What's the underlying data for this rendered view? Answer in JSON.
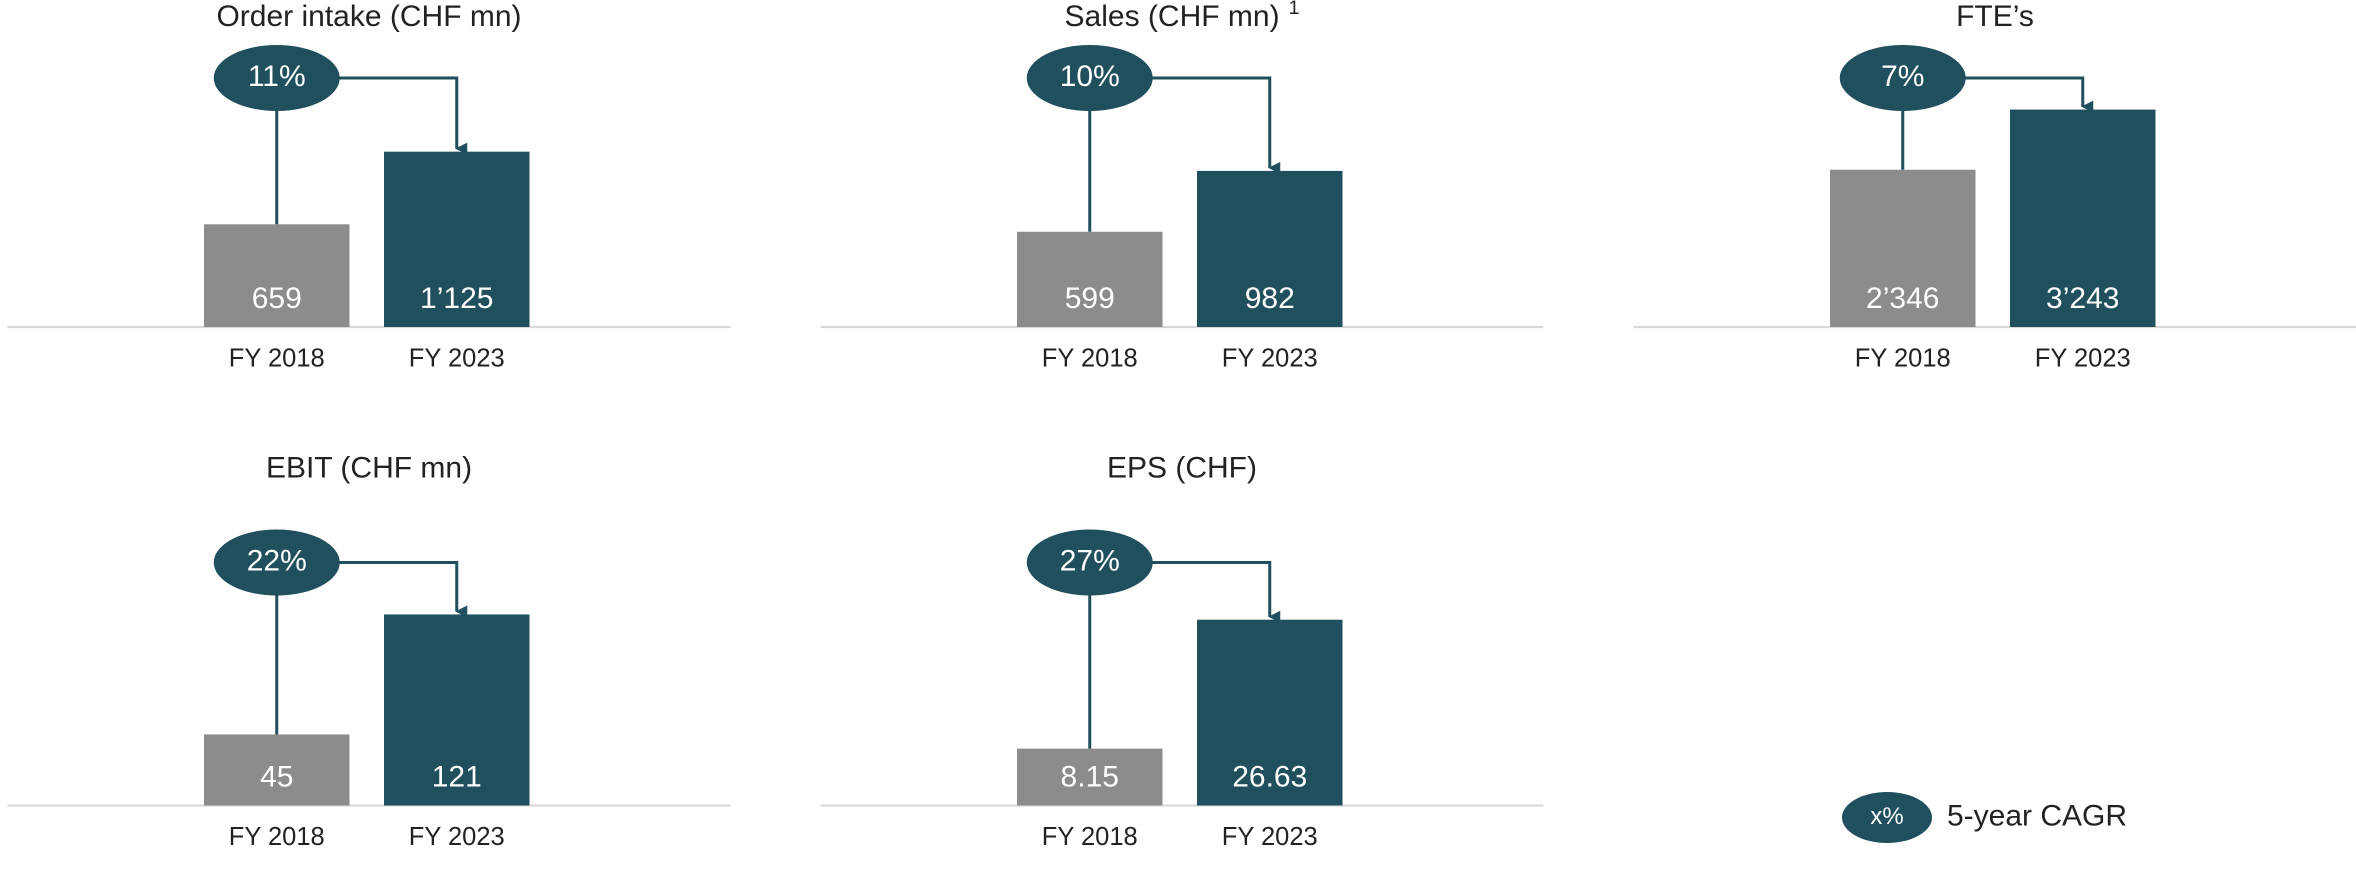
{
  "chart_data": [
    {
      "type": "bar",
      "title": "Order intake (CHF mn)",
      "categories": [
        "FY 2018",
        "FY 2023"
      ],
      "values": [
        659,
        1125
      ],
      "value_labels": [
        "659",
        "1’125"
      ],
      "annotation": "11%",
      "colors": [
        "#8c8c8c",
        "#204f5e"
      ],
      "ylim": [
        0,
        1540
      ]
    },
    {
      "type": "bar",
      "title": "Sales (CHF mn)",
      "footnote_marker": "1",
      "categories": [
        "FY 2018",
        "FY 2023"
      ],
      "values": [
        599,
        982
      ],
      "value_labels": [
        "599",
        "982"
      ],
      "annotation": "10%",
      "colors": [
        "#8c8c8c",
        "#204f5e"
      ],
      "ylim": [
        0,
        1510
      ]
    },
    {
      "type": "bar",
      "title": "FTE’s",
      "categories": [
        "FY 2018",
        "FY 2023"
      ],
      "values": [
        2346,
        3243
      ],
      "value_labels": [
        "2’346",
        "3’243"
      ],
      "annotation": "7%",
      "colors": [
        "#8c8c8c",
        "#204f5e"
      ],
      "ylim": [
        0,
        3580
      ]
    },
    {
      "type": "bar",
      "title": "EBIT (CHF mn)",
      "categories": [
        "FY 2018",
        "FY 2023"
      ],
      "values": [
        45,
        121
      ],
      "value_labels": [
        "45",
        "121"
      ],
      "annotation": "22%",
      "colors": [
        "#8c8c8c",
        "#204f5e"
      ],
      "ylim": [
        0,
        152
      ]
    },
    {
      "type": "bar",
      "title": "EPS (CHF)",
      "categories": [
        "FY 2018",
        "FY 2023"
      ],
      "values": [
        8.15,
        26.63
      ],
      "value_labels": [
        "8.15",
        "26.63"
      ],
      "annotation": "27%",
      "colors": [
        "#8c8c8c",
        "#204f5e"
      ],
      "ylim": [
        0,
        34.4
      ]
    }
  ],
  "legend": {
    "symbol": "x%",
    "label": "5-year CAGR"
  }
}
